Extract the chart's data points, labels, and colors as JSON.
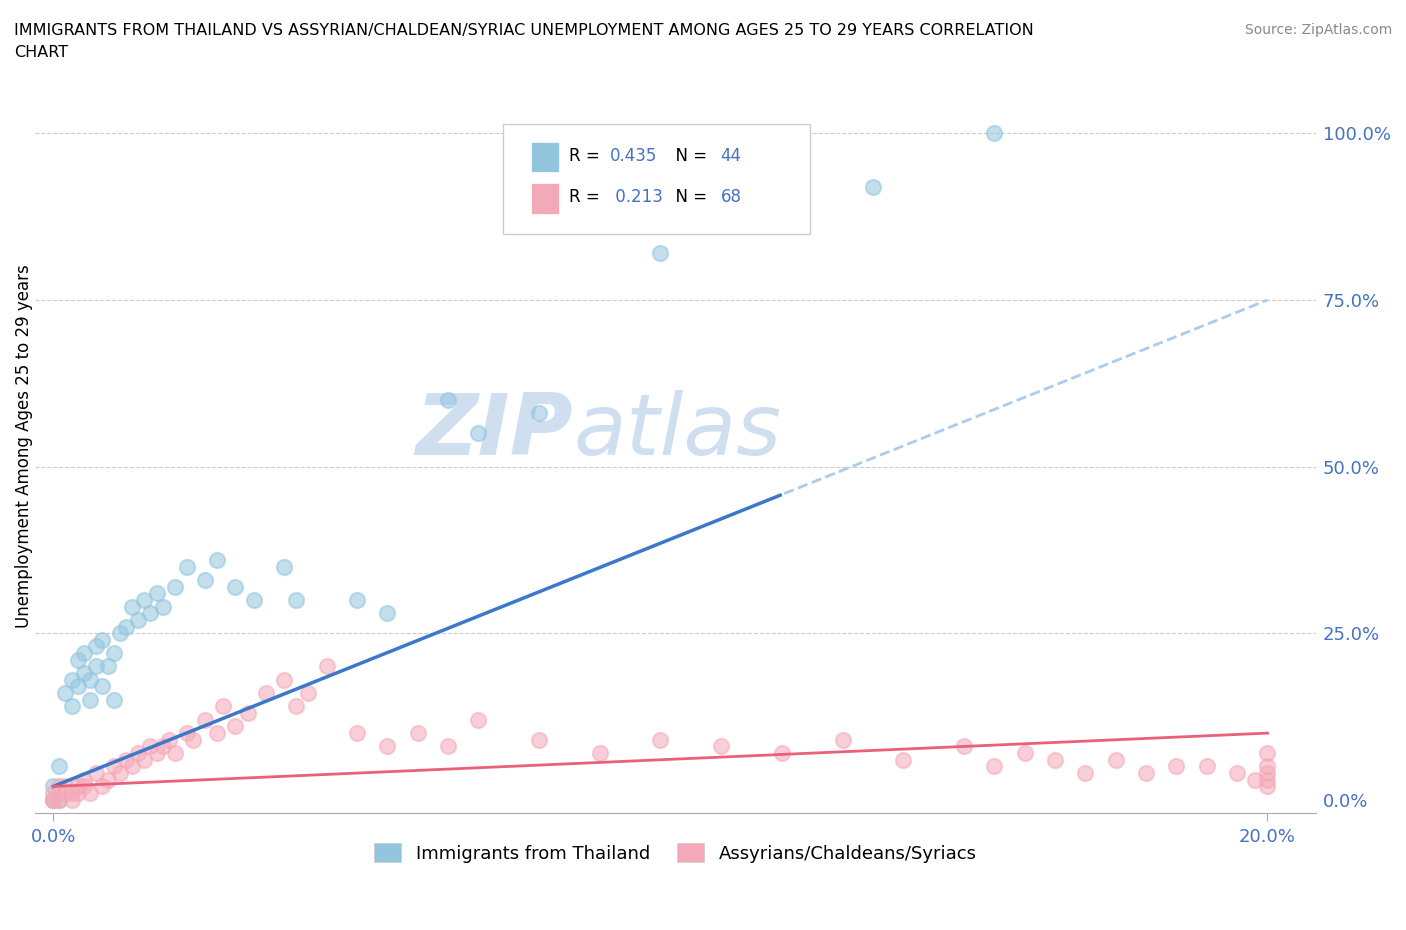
{
  "title_line1": "IMMIGRANTS FROM THAILAND VS ASSYRIAN/CHALDEAN/SYRIAC UNEMPLOYMENT AMONG AGES 25 TO 29 YEARS CORRELATION",
  "title_line2": "CHART",
  "source": "Source: ZipAtlas.com",
  "ylabel_label": "Unemployment Among Ages 25 to 29 years",
  "legend_blue_label": "Immigrants from Thailand",
  "legend_pink_label": "Assyrians/Chaldeans/Syriacs",
  "R_blue": 0.435,
  "N_blue": 44,
  "R_pink": 0.213,
  "N_pink": 68,
  "blue_color": "#92c5de",
  "pink_color": "#f4a9b8",
  "trend_blue_color": "#3a78c9",
  "trend_pink_color": "#e8607a",
  "trend_blue_dash_color": "#aaccee",
  "watermark_color": "#d0dff0",
  "tick_color": "#4472C4",
  "xmin": 0.0,
  "xmax": 0.2,
  "ymin": 0.0,
  "ymax": 1.0,
  "blue_scatter_x": [
    0.0,
    0.0,
    0.001,
    0.001,
    0.002,
    0.003,
    0.003,
    0.004,
    0.004,
    0.005,
    0.005,
    0.006,
    0.006,
    0.007,
    0.007,
    0.008,
    0.008,
    0.009,
    0.01,
    0.01,
    0.011,
    0.012,
    0.013,
    0.014,
    0.015,
    0.016,
    0.017,
    0.018,
    0.02,
    0.022,
    0.025,
    0.027,
    0.03,
    0.033,
    0.038,
    0.04,
    0.05,
    0.055,
    0.065,
    0.07,
    0.08,
    0.1,
    0.135,
    0.155
  ],
  "blue_scatter_y": [
    0.0,
    0.02,
    0.0,
    0.05,
    0.16,
    0.14,
    0.18,
    0.17,
    0.21,
    0.19,
    0.22,
    0.15,
    0.18,
    0.2,
    0.23,
    0.17,
    0.24,
    0.2,
    0.15,
    0.22,
    0.25,
    0.26,
    0.29,
    0.27,
    0.3,
    0.28,
    0.31,
    0.29,
    0.32,
    0.35,
    0.33,
    0.36,
    0.32,
    0.3,
    0.35,
    0.3,
    0.3,
    0.28,
    0.6,
    0.55,
    0.58,
    0.82,
    0.92,
    1.0
  ],
  "pink_scatter_x": [
    0.0,
    0.0,
    0.0,
    0.001,
    0.001,
    0.002,
    0.002,
    0.003,
    0.003,
    0.004,
    0.004,
    0.005,
    0.005,
    0.006,
    0.007,
    0.008,
    0.009,
    0.01,
    0.011,
    0.012,
    0.013,
    0.014,
    0.015,
    0.016,
    0.017,
    0.018,
    0.019,
    0.02,
    0.022,
    0.023,
    0.025,
    0.027,
    0.028,
    0.03,
    0.032,
    0.035,
    0.038,
    0.04,
    0.042,
    0.045,
    0.05,
    0.055,
    0.06,
    0.065,
    0.07,
    0.08,
    0.09,
    0.1,
    0.11,
    0.12,
    0.13,
    0.14,
    0.15,
    0.155,
    0.16,
    0.165,
    0.17,
    0.175,
    0.18,
    0.185,
    0.19,
    0.195,
    0.198,
    0.2,
    0.2,
    0.2,
    0.2,
    0.2
  ],
  "pink_scatter_y": [
    0.0,
    0.0,
    0.01,
    0.0,
    0.02,
    0.01,
    0.02,
    0.0,
    0.01,
    0.01,
    0.02,
    0.03,
    0.02,
    0.01,
    0.04,
    0.02,
    0.03,
    0.05,
    0.04,
    0.06,
    0.05,
    0.07,
    0.06,
    0.08,
    0.07,
    0.08,
    0.09,
    0.07,
    0.1,
    0.09,
    0.12,
    0.1,
    0.14,
    0.11,
    0.13,
    0.16,
    0.18,
    0.14,
    0.16,
    0.2,
    0.1,
    0.08,
    0.1,
    0.08,
    0.12,
    0.09,
    0.07,
    0.09,
    0.08,
    0.07,
    0.09,
    0.06,
    0.08,
    0.05,
    0.07,
    0.06,
    0.04,
    0.06,
    0.04,
    0.05,
    0.05,
    0.04,
    0.03,
    0.07,
    0.04,
    0.03,
    0.02,
    0.05
  ]
}
